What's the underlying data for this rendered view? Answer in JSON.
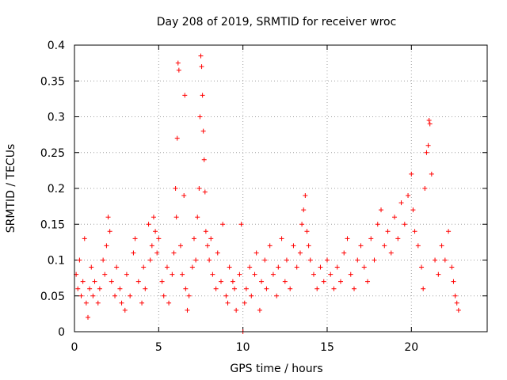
{
  "chart_data": {
    "type": "scatter",
    "title": "Day 208 of 2019, SRMTID for receiver wroc",
    "xlabel": "GPS time / hours",
    "ylabel": "SRMTID / TECUs",
    "xlim": [
      0,
      24.5
    ],
    "ylim": [
      0,
      0.4
    ],
    "x_ticks": [
      0,
      5,
      10,
      15,
      20
    ],
    "x_tick_labels": [
      "0",
      "5",
      "10",
      "15",
      "20"
    ],
    "y_ticks": [
      0,
      0.05,
      0.1,
      0.15,
      0.2,
      0.25,
      0.3,
      0.35,
      0.4
    ],
    "y_tick_labels": [
      "0",
      "0.05",
      "0.1",
      "0.15",
      "0.2",
      "0.25",
      "0.3",
      "0.35",
      "0.4"
    ],
    "grid": true,
    "marker": "+",
    "series": [
      {
        "name": "SRMTID",
        "color": "#ff0000",
        "points": [
          [
            0.1,
            0.08
          ],
          [
            0.2,
            0.06
          ],
          [
            0.3,
            0.1
          ],
          [
            0.4,
            0.05
          ],
          [
            0.5,
            0.07
          ],
          [
            0.6,
            0.13
          ],
          [
            0.7,
            0.04
          ],
          [
            0.8,
            0.02
          ],
          [
            0.9,
            0.06
          ],
          [
            1.0,
            0.09
          ],
          [
            1.1,
            0.05
          ],
          [
            1.2,
            0.07
          ],
          [
            1.4,
            0.04
          ],
          [
            1.5,
            0.06
          ],
          [
            1.7,
            0.1
          ],
          [
            1.8,
            0.08
          ],
          [
            1.9,
            0.12
          ],
          [
            2.0,
            0.16
          ],
          [
            2.1,
            0.14
          ],
          [
            2.2,
            0.07
          ],
          [
            2.4,
            0.05
          ],
          [
            2.5,
            0.09
          ],
          [
            2.7,
            0.06
          ],
          [
            2.8,
            0.04
          ],
          [
            3.0,
            0.03
          ],
          [
            3.1,
            0.08
          ],
          [
            3.3,
            0.05
          ],
          [
            3.5,
            0.11
          ],
          [
            3.6,
            0.13
          ],
          [
            3.8,
            0.07
          ],
          [
            4.0,
            0.04
          ],
          [
            4.1,
            0.09
          ],
          [
            4.2,
            0.06
          ],
          [
            4.4,
            0.15
          ],
          [
            4.5,
            0.1
          ],
          [
            4.6,
            0.12
          ],
          [
            4.7,
            0.16
          ],
          [
            4.8,
            0.14
          ],
          [
            4.9,
            0.11
          ],
          [
            5.0,
            0.13
          ],
          [
            5.2,
            0.07
          ],
          [
            5.3,
            0.05
          ],
          [
            5.5,
            0.09
          ],
          [
            5.6,
            0.04
          ],
          [
            5.8,
            0.08
          ],
          [
            5.9,
            0.11
          ],
          [
            6.0,
            0.2
          ],
          [
            6.05,
            0.16
          ],
          [
            6.1,
            0.27
          ],
          [
            6.15,
            0.375
          ],
          [
            6.2,
            0.365
          ],
          [
            6.3,
            0.12
          ],
          [
            6.4,
            0.08
          ],
          [
            6.5,
            0.19
          ],
          [
            6.55,
            0.33
          ],
          [
            6.6,
            0.06
          ],
          [
            6.7,
            0.03
          ],
          [
            6.8,
            0.05
          ],
          [
            7.0,
            0.09
          ],
          [
            7.1,
            0.13
          ],
          [
            7.2,
            0.1
          ],
          [
            7.3,
            0.16
          ],
          [
            7.4,
            0.2
          ],
          [
            7.45,
            0.3
          ],
          [
            7.5,
            0.385
          ],
          [
            7.55,
            0.37
          ],
          [
            7.6,
            0.33
          ],
          [
            7.65,
            0.28
          ],
          [
            7.7,
            0.24
          ],
          [
            7.75,
            0.195
          ],
          [
            7.8,
            0.14
          ],
          [
            7.9,
            0.12
          ],
          [
            8.0,
            0.1
          ],
          [
            8.1,
            0.13
          ],
          [
            8.2,
            0.08
          ],
          [
            8.4,
            0.06
          ],
          [
            8.5,
            0.11
          ],
          [
            8.7,
            0.07
          ],
          [
            8.8,
            0.15
          ],
          [
            9.0,
            0.05
          ],
          [
            9.1,
            0.04
          ],
          [
            9.2,
            0.09
          ],
          [
            9.4,
            0.07
          ],
          [
            9.5,
            0.06
          ],
          [
            9.6,
            0.03
          ],
          [
            9.8,
            0.08
          ],
          [
            9.9,
            0.15
          ],
          [
            10.0,
            0.0
          ],
          [
            10.1,
            0.04
          ],
          [
            10.2,
            0.06
          ],
          [
            10.4,
            0.09
          ],
          [
            10.5,
            0.05
          ],
          [
            10.7,
            0.08
          ],
          [
            10.8,
            0.11
          ],
          [
            11.0,
            0.03
          ],
          [
            11.1,
            0.07
          ],
          [
            11.3,
            0.1
          ],
          [
            11.4,
            0.06
          ],
          [
            11.6,
            0.12
          ],
          [
            11.8,
            0.08
          ],
          [
            12.0,
            0.05
          ],
          [
            12.1,
            0.09
          ],
          [
            12.3,
            0.13
          ],
          [
            12.5,
            0.07
          ],
          [
            12.6,
            0.1
          ],
          [
            12.8,
            0.06
          ],
          [
            13.0,
            0.12
          ],
          [
            13.2,
            0.09
          ],
          [
            13.4,
            0.11
          ],
          [
            13.5,
            0.15
          ],
          [
            13.6,
            0.17
          ],
          [
            13.7,
            0.19
          ],
          [
            13.8,
            0.14
          ],
          [
            13.9,
            0.12
          ],
          [
            14.0,
            0.1
          ],
          [
            14.2,
            0.08
          ],
          [
            14.4,
            0.06
          ],
          [
            14.6,
            0.09
          ],
          [
            14.8,
            0.07
          ],
          [
            15.0,
            0.1
          ],
          [
            15.2,
            0.08
          ],
          [
            15.4,
            0.06
          ],
          [
            15.6,
            0.09
          ],
          [
            15.8,
            0.07
          ],
          [
            16.0,
            0.11
          ],
          [
            16.2,
            0.13
          ],
          [
            16.4,
            0.08
          ],
          [
            16.6,
            0.06
          ],
          [
            16.8,
            0.1
          ],
          [
            17.0,
            0.12
          ],
          [
            17.2,
            0.09
          ],
          [
            17.4,
            0.07
          ],
          [
            17.6,
            0.13
          ],
          [
            17.8,
            0.1
          ],
          [
            18.0,
            0.15
          ],
          [
            18.2,
            0.17
          ],
          [
            18.4,
            0.12
          ],
          [
            18.6,
            0.14
          ],
          [
            18.8,
            0.11
          ],
          [
            19.0,
            0.16
          ],
          [
            19.2,
            0.13
          ],
          [
            19.4,
            0.18
          ],
          [
            19.6,
            0.15
          ],
          [
            19.8,
            0.19
          ],
          [
            20.0,
            0.22
          ],
          [
            20.1,
            0.17
          ],
          [
            20.2,
            0.14
          ],
          [
            20.4,
            0.12
          ],
          [
            20.6,
            0.09
          ],
          [
            20.7,
            0.06
          ],
          [
            20.8,
            0.2
          ],
          [
            20.9,
            0.25
          ],
          [
            21.0,
            0.26
          ],
          [
            21.05,
            0.295
          ],
          [
            21.1,
            0.29
          ],
          [
            21.2,
            0.22
          ],
          [
            21.4,
            0.1
          ],
          [
            21.6,
            0.08
          ],
          [
            21.8,
            0.12
          ],
          [
            22.0,
            0.1
          ],
          [
            22.2,
            0.14
          ],
          [
            22.4,
            0.09
          ],
          [
            22.5,
            0.07
          ],
          [
            22.6,
            0.05
          ],
          [
            22.7,
            0.04
          ],
          [
            22.8,
            0.03
          ]
        ]
      }
    ]
  }
}
